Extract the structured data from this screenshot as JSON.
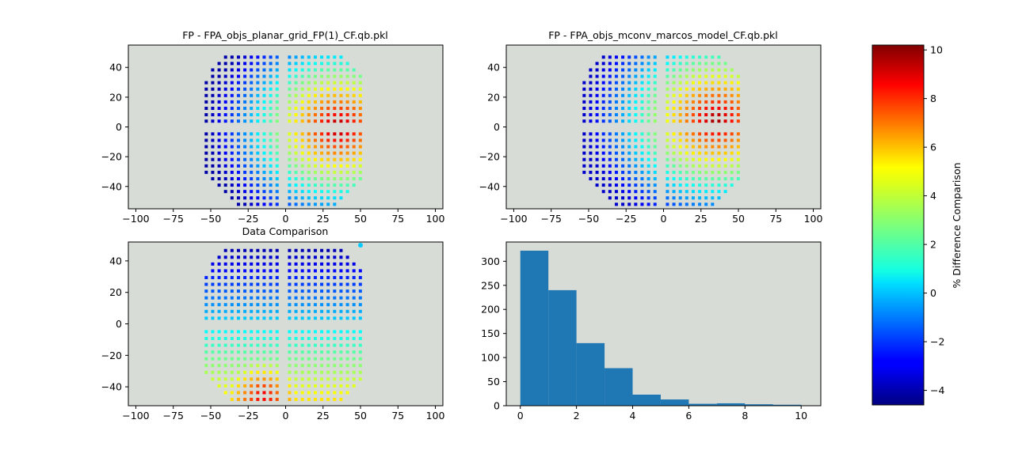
{
  "chart_data": [
    {
      "type": "scatter",
      "title": "FP - FPA_objs_planar_grid_FP(1)_CF.qb.pkl",
      "xlim": [
        -105,
        105
      ],
      "ylim": [
        -55,
        55
      ],
      "xticks": [
        -100,
        -75,
        -50,
        -25,
        0,
        25,
        50,
        75,
        100
      ],
      "yticks": [
        -40,
        -20,
        0,
        20,
        40
      ],
      "background": "#d8dcd6",
      "grid_spacing": 4.3,
      "center_gap": true,
      "field_extent": {
        "half_width_x": 51,
        "y_top": 51,
        "y_bottom": -52
      },
      "colormap": "jet",
      "color_range": [
        -4.6,
        10.2
      ],
      "value_model": {
        "type": "radial_hotspot",
        "min": -4,
        "peak": 10,
        "hotspot": [
          35,
          0
        ]
      }
    },
    {
      "type": "scatter",
      "title": "FP - FPA_objs_mconv_marcos_model_CF.qb.pkl",
      "xlim": [
        -105,
        105
      ],
      "ylim": [
        -55,
        55
      ],
      "xticks": [
        -100,
        -75,
        -50,
        -25,
        0,
        25,
        50,
        75,
        100
      ],
      "yticks": [
        -40,
        -20,
        0,
        20,
        40
      ],
      "background": "#d8dcd6",
      "grid_spacing": 4.3,
      "center_gap": true,
      "field_extent": {
        "half_width_x": 51,
        "y_top": 51,
        "y_bottom": -52
      },
      "colormap": "jet",
      "color_range": [
        -4.6,
        10.2
      ],
      "value_model": {
        "type": "radial_hotspot",
        "min": -3.5,
        "peak": 10,
        "hotspot": [
          35,
          5
        ]
      }
    },
    {
      "type": "scatter",
      "title": "Data Comparison",
      "xlim": [
        -105,
        105
      ],
      "ylim": [
        -52,
        52
      ],
      "xticks": [
        -100,
        -75,
        -50,
        -25,
        0,
        25,
        50,
        75,
        100
      ],
      "yticks": [
        -40,
        -20,
        0,
        20,
        40
      ],
      "background": "#d8dcd6",
      "grid_spacing": 4.3,
      "center_gap": true,
      "field_extent": {
        "half_width_x": 51,
        "y_top": 48,
        "y_bottom": -48
      },
      "colormap": "jet",
      "color_range": [
        -4.6,
        10.2
      ],
      "value_model": {
        "type": "vertical_gradient",
        "top": -4,
        "bottom": 5,
        "hot_spot": [
          -15,
          -44
        ],
        "hot_value": 9
      },
      "outlier_point": {
        "x": 50,
        "y": 50,
        "value": 0.2
      }
    },
    {
      "type": "bar",
      "title": "",
      "bins": [
        0,
        1,
        2,
        3,
        4,
        5,
        6,
        7,
        8,
        9,
        10
      ],
      "counts": [
        322,
        240,
        130,
        78,
        23,
        13,
        4,
        5,
        3,
        2
      ],
      "bar_color": "#1f77b4",
      "background": "#d8dcd6",
      "xlim": [
        -0.5,
        10.7
      ],
      "ylim": [
        0,
        340
      ],
      "xticks": [
        0,
        2,
        4,
        6,
        8,
        10
      ],
      "yticks": [
        0,
        50,
        100,
        150,
        200,
        250,
        300
      ]
    }
  ],
  "colorbar": {
    "label": "% Difference Comparison",
    "range": [
      -4.6,
      10.2
    ],
    "ticks": [
      -4,
      -2,
      0,
      2,
      4,
      6,
      8,
      10
    ]
  }
}
